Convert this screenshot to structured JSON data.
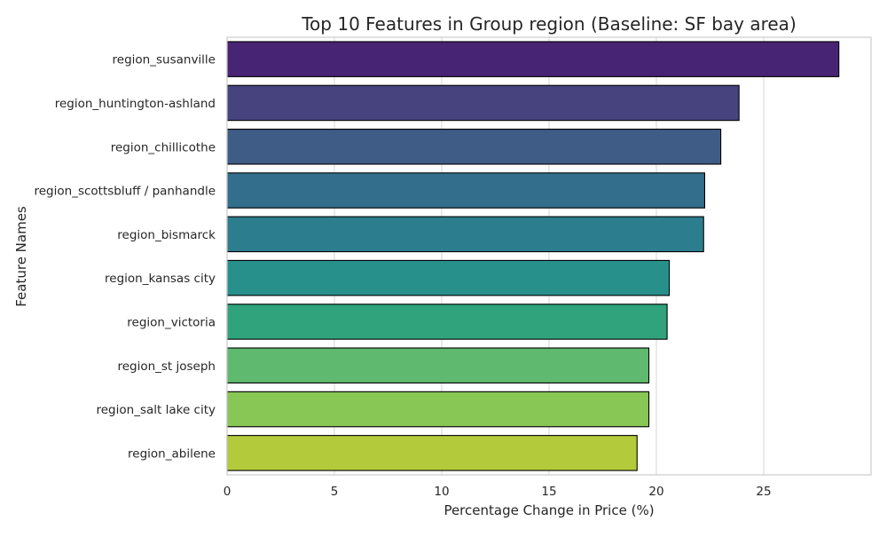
{
  "chart_data": {
    "type": "bar",
    "orientation": "horizontal",
    "title": "Top 10 Features in Group region (Baseline: SF bay area)",
    "xlabel": "Percentage Change in Price (%)",
    "ylabel": "Feature Names",
    "xlim": [
      0,
      30
    ],
    "xticks": [
      0,
      5,
      10,
      15,
      20,
      25
    ],
    "grid": true,
    "categories": [
      "region_susanville",
      "region_huntington-ashland",
      "region_chillicothe",
      "region_scottsbluff / panhandle",
      "region_bismarck",
      "region_kansas city",
      "region_victoria",
      "region_st joseph",
      "region_salt lake city",
      "region_abilene"
    ],
    "values": [
      28.5,
      23.85,
      23.0,
      22.25,
      22.2,
      20.6,
      20.5,
      19.65,
      19.65,
      19.1
    ],
    "colors": [
      "#482475",
      "#46437f",
      "#3f5c87",
      "#336e8c",
      "#2c7d8e",
      "#28908b",
      "#30a27c",
      "#5fb96e",
      "#88c656",
      "#b3cb3b"
    ]
  }
}
